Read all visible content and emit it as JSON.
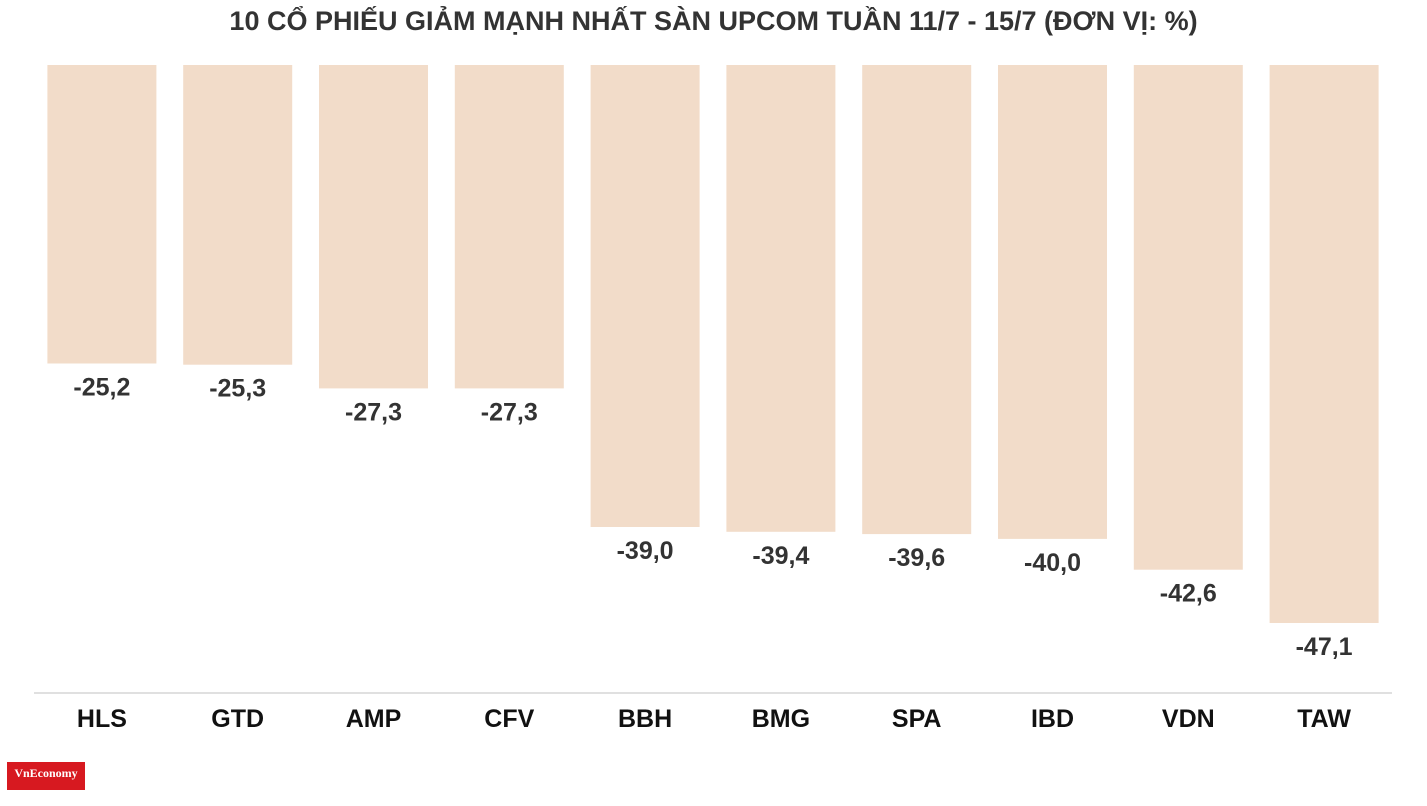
{
  "chart_data": {
    "type": "bar",
    "title": "10 CỔ PHIẾU GIẢM MẠNH NHẤT SÀN UPCOM TUẦN 11/7 - 15/7 (ĐƠN VỊ: %)",
    "categories": [
      "HLS",
      "GTD",
      "AMP",
      "CFV",
      "BBH",
      "BMG",
      "SPA",
      "IBD",
      "VDN",
      "TAW"
    ],
    "values": [
      -25.2,
      -25.3,
      -27.3,
      -27.3,
      -39.0,
      -39.4,
      -39.6,
      -40.0,
      -42.6,
      -47.1
    ],
    "value_labels": [
      "-25,2",
      "-25,3",
      "-27,3",
      "-27,3",
      "-39,0",
      "-39,4",
      "-39,6",
      "-40,0",
      "-42,6",
      "-47,1"
    ],
    "xlabel": "",
    "ylabel": "",
    "ylim": [
      -47.1,
      0
    ],
    "grid": false,
    "legend": "none",
    "bar_color": "#f2dcc9",
    "axis_color": "#e0e0e0"
  },
  "branding": {
    "logo_text": "VnEconomy",
    "logo_color": "#d71920"
  }
}
